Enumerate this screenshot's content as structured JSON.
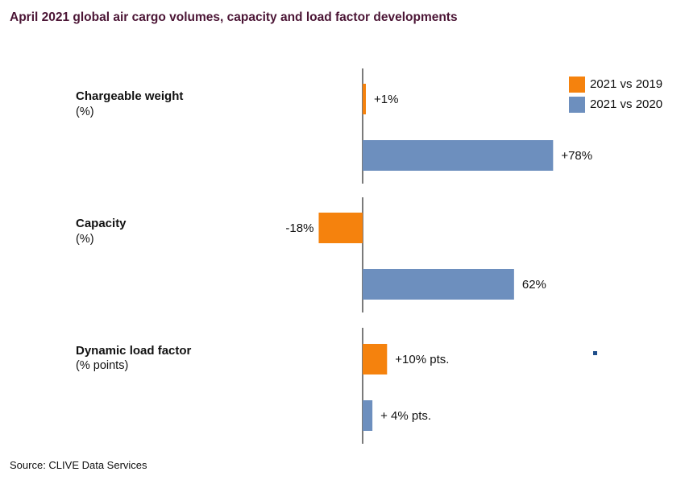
{
  "title": "April 2021 global air cargo volumes, capacity and load factor developments",
  "source": "Source: CLIVE Data Services",
  "legend": [
    {
      "label": "2021 vs 2019",
      "color": "#f5820d"
    },
    {
      "label": "2021 vs 2020",
      "color": "#6d8fbe"
    }
  ],
  "groups": [
    {
      "title": "Chargeable weight",
      "unit": "(%)"
    },
    {
      "title": "Capacity",
      "unit": "(%)"
    },
    {
      "title": "Dynamic load factor",
      "unit": "(% points)"
    }
  ],
  "chart_data": {
    "type": "bar",
    "orientation": "horizontal",
    "title": "April 2021 global air cargo volumes, capacity and load factor developments",
    "categories": [
      "Chargeable weight",
      "Capacity",
      "Dynamic load factor"
    ],
    "series": [
      {
        "name": "2021 vs 2019",
        "color": "#f5820d",
        "values": [
          1,
          -18,
          10
        ],
        "labels": [
          "+1%",
          "-18%",
          "+10% pts."
        ]
      },
      {
        "name": "2021 vs 2020",
        "color": "#6d8fbe",
        "values": [
          78,
          62,
          4
        ],
        "labels": [
          "+78%",
          "62%",
          "+ 4% pts."
        ]
      }
    ],
    "legend_position": "top-right",
    "grid": false
  }
}
